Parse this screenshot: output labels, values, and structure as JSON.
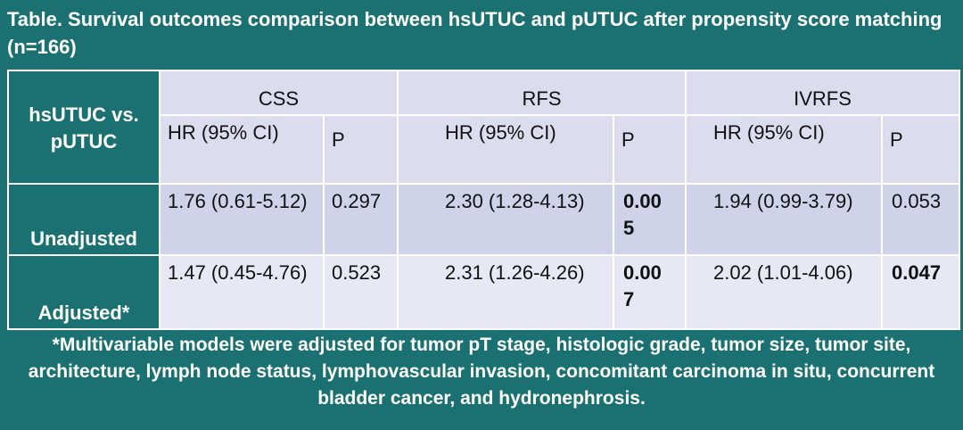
{
  "title": "Table. Survival outcomes comparison between hsUTUC and pUTUC after propensity score matching (n=166)",
  "table": {
    "corner": "hsUTUC vs. pUTUC",
    "groups": [
      "CSS",
      "RFS",
      "IVRFS"
    ],
    "subheaders": [
      "HR (95% CI)",
      "P",
      "HR (95% CI)",
      "P",
      "HR (95% CI)",
      "P"
    ],
    "rows": [
      {
        "label": "Unadjusted",
        "cells": [
          {
            "text": "1.76 (0.61-5.12)",
            "bold": false
          },
          {
            "text": "0.297",
            "bold": false
          },
          {
            "text": "2.30 (1.28-4.13)",
            "bold": false
          },
          {
            "text": "0.005",
            "bold": true
          },
          {
            "text": "1.94 (0.99-3.79)",
            "bold": false
          },
          {
            "text": "0.053",
            "bold": false
          }
        ]
      },
      {
        "label": "Adjusted*",
        "cells": [
          {
            "text": "1.47 (0.45-4.76)",
            "bold": false
          },
          {
            "text": "0.523",
            "bold": false
          },
          {
            "text": "2.31 (1.26-4.26)",
            "bold": false
          },
          {
            "text": "0.007",
            "bold": true
          },
          {
            "text": "2.02 (1.01-4.06)",
            "bold": false
          },
          {
            "text": "0.047",
            "bold": true
          }
        ]
      }
    ]
  },
  "footnote": "*Multivariable models were adjusted for tumor pT stage, histologic grade, tumor size, tumor site, architecture, lymph node status, lymphovascular invasion, concomitant carcinoma in situ, concurrent bladder cancer, and hydronephrosis."
}
